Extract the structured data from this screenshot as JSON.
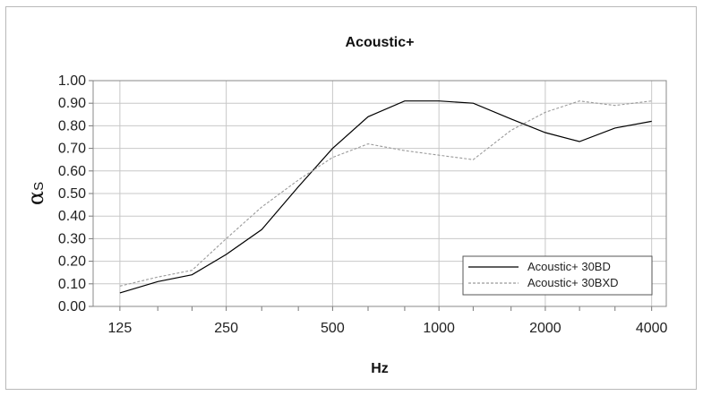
{
  "chart_data": {
    "type": "line",
    "title": "Acoustic+",
    "xlabel": "Hz",
    "ylabel": "α",
    "ylabel_sub": "S",
    "x_scale": "log2",
    "x": [
      125,
      160,
      200,
      250,
      315,
      400,
      500,
      630,
      800,
      1000,
      1250,
      1600,
      2000,
      2500,
      3150,
      4000
    ],
    "x_ticks": [
      125,
      250,
      500,
      1000,
      2000,
      4000
    ],
    "x_tick_labels": [
      "125",
      "250",
      "500",
      "1000",
      "2000",
      "4000"
    ],
    "xlim": [
      105,
      4400
    ],
    "ylim": [
      0,
      1
    ],
    "y_ticks": [
      0,
      0.1,
      0.2,
      0.3,
      0.4,
      0.5,
      0.6,
      0.7,
      0.8,
      0.9,
      1.0
    ],
    "y_tick_labels": [
      "0.00",
      "0.10",
      "0.20",
      "0.30",
      "0.40",
      "0.50",
      "0.60",
      "0.70",
      "0.80",
      "0.90",
      "1.00"
    ],
    "grid": true,
    "legend_position": "bottom-right",
    "series": [
      {
        "name": "Acoustic+ 30BD",
        "color": "#000000",
        "dash": "solid",
        "values": [
          0.06,
          0.11,
          0.14,
          0.23,
          0.34,
          0.53,
          0.7,
          0.84,
          0.91,
          0.91,
          0.9,
          0.83,
          0.77,
          0.73,
          0.79,
          0.82
        ]
      },
      {
        "name": "Acoustic+ 30BXD",
        "color": "#9a9a9a",
        "dash": "dashed",
        "values": [
          0.09,
          0.13,
          0.16,
          0.3,
          0.44,
          0.56,
          0.66,
          0.72,
          0.69,
          0.67,
          0.65,
          0.78,
          0.86,
          0.91,
          0.89,
          0.91
        ]
      }
    ]
  }
}
